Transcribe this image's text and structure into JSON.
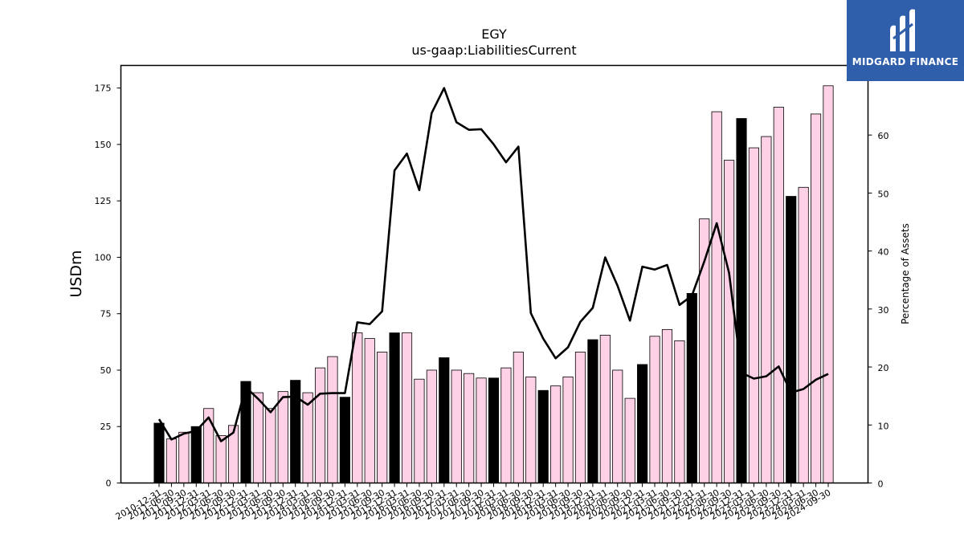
{
  "chart_data": {
    "type": "bar",
    "title": "EGY",
    "subtitle": "us-gaap:LiabilitiesCurrent",
    "ylabel": "USDm",
    "y2label": "Percentage of Assets",
    "ylim": [
      0,
      185
    ],
    "y2lim": [
      0,
      72
    ],
    "yticks": [
      0,
      25,
      50,
      75,
      100,
      125,
      150,
      175
    ],
    "y2ticks": [
      0,
      10,
      20,
      30,
      40,
      50,
      60
    ],
    "grid": false,
    "categories": [
      "2010-12-31",
      "2011-06-30",
      "2011-09-30",
      "2011-12-31",
      "2012-03-31",
      "2012-06-30",
      "2012-09-30",
      "2012-12-31",
      "2013-03-31",
      "2013-06-30",
      "2013-09-30",
      "2013-12-31",
      "2014-03-31",
      "2014-06-30",
      "2014-09-30",
      "2014-12-31",
      "2015-03-31",
      "2015-06-30",
      "2015-09-30",
      "2015-12-31",
      "2016-03-31",
      "2016-06-30",
      "2016-09-30",
      "2016-12-31",
      "2017-03-31",
      "2017-06-30",
      "2017-09-30",
      "2017-12-31",
      "2018-03-31",
      "2018-06-30",
      "2018-09-30",
      "2018-12-31",
      "2019-03-31",
      "2019-06-30",
      "2019-09-30",
      "2019-12-31",
      "2020-03-31",
      "2020-06-30",
      "2020-09-30",
      "2020-12-31",
      "2021-03-31",
      "2021-06-30",
      "2021-09-30",
      "2021-12-31",
      "2022-03-31",
      "2022-06-30",
      "2022-09-30",
      "2022-12-31",
      "2023-03-31",
      "2023-06-30",
      "2023-09-30",
      "2023-12-31",
      "2024-03-31",
      "2024-06-30",
      "2024-09-30"
    ],
    "series": [
      {
        "kind": "bar",
        "values": [
          26.5,
          19.5,
          22.5,
          25,
          33,
          21,
          25.5,
          45,
          40,
          33,
          40.5,
          45.5,
          40,
          51,
          56,
          38,
          66.5,
          64,
          58,
          66.5,
          66.5,
          46,
          50,
          55.5,
          50,
          48.5,
          46.5,
          46.5,
          51,
          58,
          47,
          41,
          43,
          47,
          58,
          63.5,
          65.5,
          50,
          37.5,
          52.5,
          65,
          68,
          63,
          84,
          117,
          164.5,
          143,
          161.5,
          148.5,
          153.5,
          166.5,
          127,
          131,
          163.5,
          176
        ],
        "year_end_color": "#000000",
        "quarter_color": "#ffd1e6"
      },
      {
        "kind": "line",
        "axis": "right",
        "color": "#000000",
        "values": [
          11,
          7.5,
          8.5,
          9,
          11.3,
          7.2,
          8.7,
          16.5,
          14.5,
          12.2,
          14.8,
          14.9,
          13.5,
          15.4,
          15.5,
          15.5,
          27.7,
          27.4,
          29.6,
          53.9,
          56.8,
          50.5,
          63.8,
          68.1,
          62.2,
          60.9,
          61,
          58.4,
          55.3,
          58,
          29.3,
          24.9,
          21.5,
          23.4,
          27.8,
          30.2,
          38.9,
          34,
          28,
          37.3,
          36.8,
          37.6,
          30.7,
          32.3,
          38.2,
          44.8,
          36.2,
          19,
          18,
          18.4,
          20.1,
          15.6,
          16.2,
          17.8,
          18.8
        ]
      }
    ]
  },
  "logo": {
    "text": "MIDGARD FINANCE"
  }
}
